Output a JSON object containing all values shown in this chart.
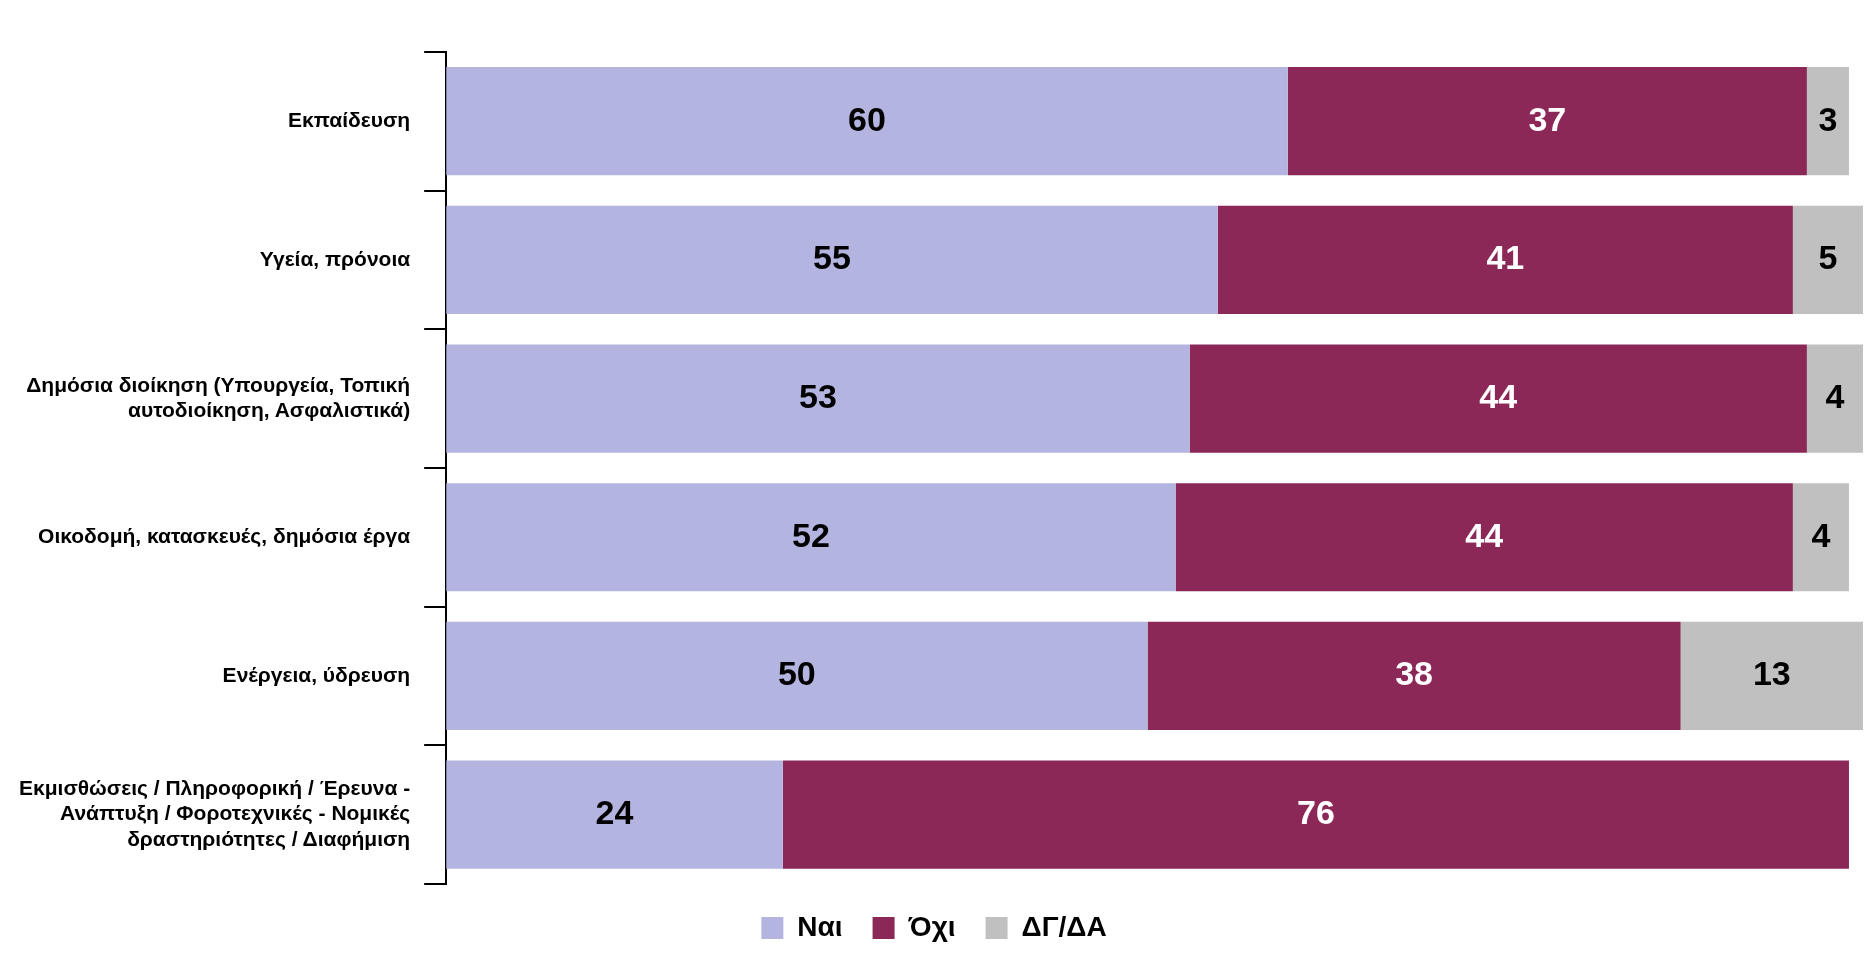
{
  "chart_data": {
    "type": "bar",
    "orientation": "horizontal",
    "stacked": true,
    "data_labels": true,
    "legend": "bottom",
    "grid": false,
    "categories": [
      "Εκπαίδευση",
      "Υγεία, πρόνοια",
      "Δημόσια διοίκηση (Υπουργεία, Τοπική αυτοδιοίκηση, Ασφαλιστικά)",
      "Οικοδομή, κατασκευές, δημόσια έργα",
      "Ενέργεια, ύδρευση",
      "Εκμισθώσεις / Πληροφορική / Έρευνα - Ανάπτυξη / Φοροτεχνικές - Νομικές δραστηριότητες / Διαφήμιση"
    ],
    "series": [
      {
        "name": "Ναι",
        "color": "#b4b4e0",
        "values": [
          60,
          55,
          53,
          52,
          50,
          24
        ]
      },
      {
        "name": "Όχι",
        "color": "#8c2858",
        "values": [
          37,
          41,
          44,
          44,
          38,
          76
        ]
      },
      {
        "name": "ΔΓ/ΔΑ",
        "color": "#c0c0c0",
        "values": [
          3,
          5,
          4,
          4,
          13,
          null
        ]
      }
    ]
  }
}
